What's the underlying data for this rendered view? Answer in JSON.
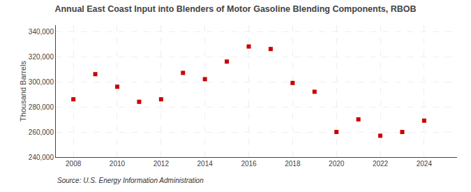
{
  "chart_data": {
    "type": "scatter",
    "title": "Annual East Coast Input into Blenders of Motor Gasoline Blending Components, RBOB",
    "ylabel": "Thousand Barrels",
    "annotations": [
      "Source: U.S. Energy Information Administration"
    ],
    "x": [
      2008,
      2009,
      2010,
      2011,
      2012,
      2013,
      2014,
      2015,
      2016,
      2017,
      2018,
      2019,
      2020,
      2021,
      2022,
      2023,
      2024
    ],
    "values": [
      286000,
      306000,
      296000,
      284000,
      286000,
      307000,
      302000,
      316000,
      328000,
      326000,
      299000,
      292000,
      260000,
      270000,
      257000,
      260000,
      269000
    ],
    "color": "#CC0000",
    "marker": "square",
    "xlim": [
      2007.2,
      2025.5
    ],
    "xticks": [
      2008,
      2010,
      2012,
      2014,
      2016,
      2018,
      2020,
      2022,
      2024
    ],
    "ylim": [
      240000,
      345000
    ],
    "yticks": [
      {
        "value": 240000,
        "label": "240,000"
      },
      {
        "value": 260000,
        "label": "260,000"
      },
      {
        "value": 280000,
        "label": "280,000"
      },
      {
        "value": 300000,
        "label": "300,000"
      },
      {
        "value": 320000,
        "label": "320,000"
      },
      {
        "value": 340000,
        "label": "340,000"
      }
    ],
    "grid": true
  }
}
